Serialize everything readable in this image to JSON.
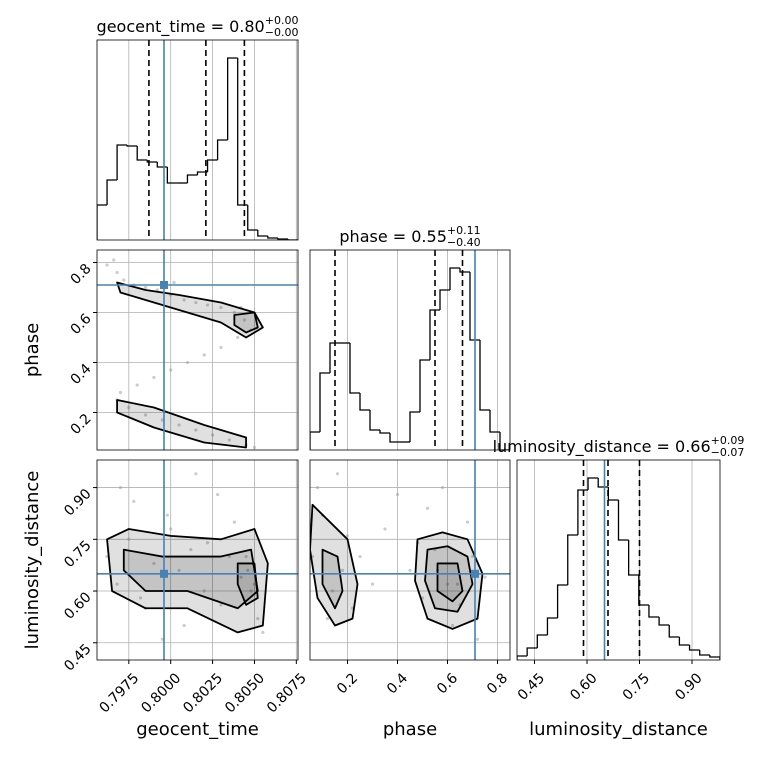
{
  "chart_data": [
    {
      "type": "histogram",
      "title": "geocent_time = 0.80",
      "title_upper": "+0.00",
      "title_lower": "−0.00",
      "xlim": [
        0.7956,
        0.8076
      ],
      "ylim": [
        0,
        200
      ],
      "color": "#000000",
      "grid": true,
      "bins": [
        0.7956,
        0.7962,
        0.7968,
        0.7974,
        0.798,
        0.7986,
        0.7992,
        0.7998,
        0.8004,
        0.801,
        0.8016,
        0.8022,
        0.8028,
        0.8034,
        0.804,
        0.8046,
        0.8052,
        0.8058,
        0.8064,
        0.807,
        0.8076
      ],
      "values": [
        35,
        60,
        95,
        94,
        80,
        78,
        73,
        57,
        57,
        65,
        68,
        80,
        100,
        182,
        35,
        10,
        4,
        2,
        1,
        0
      ],
      "quantiles": [
        0.7987,
        0.8021,
        0.8044
      ],
      "truth": 0.7996,
      "truth_color": "#4682b4"
    },
    {
      "type": "scatter",
      "xlim": [
        0.7956,
        0.8076
      ],
      "ylim": [
        0.05,
        0.85
      ],
      "grid": true,
      "ylabel": "phase",
      "yticks": [
        0.2,
        0.4,
        0.6,
        0.8
      ],
      "color": "#999999",
      "truth_x": 0.7996,
      "truth_y": 0.71,
      "truth_color": "#4682b4",
      "x": [
        0.7962,
        0.7968,
        0.7972,
        0.7978,
        0.7985,
        0.7992,
        0.8,
        0.8008,
        0.8015,
        0.8022,
        0.803,
        0.8038,
        0.8044,
        0.8048,
        0.804,
        0.803,
        0.802,
        0.801,
        0.8,
        0.799,
        0.798,
        0.797,
        0.7968,
        0.7975,
        0.7985,
        0.7995,
        0.8005,
        0.8015,
        0.8025,
        0.8035,
        0.8045,
        0.805,
        0.7966,
        0.8002,
        0.8042
      ],
      "y": [
        0.79,
        0.76,
        0.73,
        0.71,
        0.7,
        0.69,
        0.67,
        0.65,
        0.64,
        0.63,
        0.62,
        0.6,
        0.57,
        0.53,
        0.5,
        0.46,
        0.43,
        0.4,
        0.37,
        0.34,
        0.31,
        0.28,
        0.25,
        0.22,
        0.19,
        0.17,
        0.15,
        0.13,
        0.11,
        0.09,
        0.07,
        0.06,
        0.81,
        0.72,
        0.62
      ],
      "contours": [
        {
          "x": [
            0.7968,
            0.7985,
            0.8005,
            0.803,
            0.805,
            0.8055,
            0.8045,
            0.803,
            0.801,
            0.799,
            0.797
          ],
          "y": [
            0.72,
            0.69,
            0.67,
            0.64,
            0.6,
            0.54,
            0.5,
            0.56,
            0.6,
            0.64,
            0.68
          ]
        },
        {
          "x": [
            0.8038,
            0.805,
            0.8052,
            0.8045,
            0.8038
          ],
          "y": [
            0.59,
            0.6,
            0.54,
            0.52,
            0.55
          ]
        },
        {
          "x": [
            0.7968,
            0.799,
            0.802,
            0.8045,
            0.8045,
            0.802,
            0.799,
            0.7968
          ],
          "y": [
            0.25,
            0.22,
            0.15,
            0.1,
            0.06,
            0.08,
            0.14,
            0.2
          ]
        }
      ]
    },
    {
      "type": "histogram",
      "title": "phase = 0.55",
      "title_upper": "+0.11",
      "title_lower": "−0.40",
      "xlim": [
        0.05,
        0.85
      ],
      "ylim": [
        0,
        200
      ],
      "color": "#000000",
      "grid": true,
      "bins": [
        0.05,
        0.09,
        0.13,
        0.17,
        0.21,
        0.25,
        0.29,
        0.33,
        0.37,
        0.41,
        0.45,
        0.49,
        0.53,
        0.57,
        0.61,
        0.65,
        0.69,
        0.73,
        0.77,
        0.81,
        0.85
      ],
      "values": [
        18,
        77,
        107,
        107,
        57,
        40,
        20,
        17,
        8,
        8,
        38,
        90,
        140,
        160,
        182,
        178,
        110,
        40,
        18,
        0
      ],
      "quantiles": [
        0.15,
        0.55,
        0.66
      ],
      "truth": 0.71,
      "truth_color": "#4682b4"
    },
    {
      "type": "scatter",
      "xlim": [
        0.7956,
        0.8076
      ],
      "ylim": [
        0.4,
        0.98
      ],
      "grid": true,
      "xlabel": "geocent_time",
      "ylabel": "luminosity_distance",
      "xticks": [
        0.7975,
        {
          "value": 0.8,
          "label": "0.8000"
        },
        0.8025,
        {
          "value": 0.805,
          "label": "0.8050"
        },
        0.8075
      ],
      "yticks": [
        0.45,
        {
          "value": 0.6,
          "label": "0.60"
        },
        0.75,
        {
          "value": 0.9,
          "label": "0.90"
        }
      ],
      "color": "#999999",
      "truth_x": 0.7996,
      "truth_y": 0.65,
      "truth_color": "#4682b4",
      "x": [
        0.7962,
        0.7968,
        0.7975,
        0.7982,
        0.799,
        0.7998,
        0.8005,
        0.8012,
        0.802,
        0.8028,
        0.8035,
        0.8042,
        0.8048,
        0.8052,
        0.8055,
        0.797,
        0.7985,
        0.8,
        0.8015,
        0.803,
        0.8045,
        0.805,
        0.7978,
        0.8008,
        0.8038,
        0.8046,
        0.7995,
        0.8022
      ],
      "y": [
        0.7,
        0.62,
        0.75,
        0.58,
        0.68,
        0.82,
        0.66,
        0.72,
        0.6,
        0.88,
        0.7,
        0.64,
        0.6,
        0.52,
        0.48,
        0.9,
        0.55,
        0.78,
        0.94,
        0.56,
        0.7,
        0.62,
        0.86,
        0.5,
        0.8,
        0.66,
        0.46,
        0.74
      ],
      "contours": [
        {
          "x": [
            0.7962,
            0.7975,
            0.8,
            0.803,
            0.805,
            0.8058,
            0.8055,
            0.804,
            0.801,
            0.7985,
            0.7965
          ],
          "y": [
            0.75,
            0.78,
            0.76,
            0.75,
            0.78,
            0.68,
            0.5,
            0.48,
            0.55,
            0.55,
            0.6
          ]
        },
        {
          "x": [
            0.7972,
            0.7995,
            0.803,
            0.8048,
            0.8052,
            0.804,
            0.801,
            0.7985,
            0.7972
          ],
          "y": [
            0.72,
            0.7,
            0.7,
            0.72,
            0.6,
            0.55,
            0.6,
            0.6,
            0.66
          ]
        },
        {
          "x": [
            0.804,
            0.805,
            0.8052,
            0.8045,
            0.804
          ],
          "y": [
            0.68,
            0.68,
            0.58,
            0.56,
            0.62
          ]
        }
      ]
    },
    {
      "type": "scatter",
      "xlim": [
        0.05,
        0.85
      ],
      "ylim": [
        0.4,
        0.98
      ],
      "grid": true,
      "xlabel": "phase",
      "xticks": [
        0.2,
        0.4,
        0.6,
        0.8
      ],
      "color": "#999999",
      "truth_x": 0.71,
      "truth_y": 0.65,
      "truth_color": "#4682b4",
      "x": [
        0.06,
        0.1,
        0.14,
        0.18,
        0.22,
        0.08,
        0.12,
        0.2,
        0.16,
        0.25,
        0.3,
        0.45,
        0.5,
        0.55,
        0.6,
        0.65,
        0.7,
        0.75,
        0.52,
        0.58,
        0.62,
        0.68,
        0.72,
        0.48,
        0.56,
        0.64,
        0.35,
        0.4
      ],
      "y": [
        0.7,
        0.82,
        0.6,
        0.66,
        0.55,
        0.9,
        0.52,
        0.76,
        0.94,
        0.7,
        0.62,
        0.66,
        0.58,
        0.72,
        0.62,
        0.56,
        0.7,
        0.64,
        0.84,
        0.9,
        0.5,
        0.8,
        0.46,
        0.74,
        0.66,
        0.62,
        0.78,
        0.88
      ],
      "contours": [
        {
          "x": [
            0.06,
            0.13,
            0.2,
            0.24,
            0.22,
            0.15,
            0.08,
            0.05
          ],
          "y": [
            0.85,
            0.8,
            0.75,
            0.62,
            0.52,
            0.5,
            0.58,
            0.72
          ]
        },
        {
          "x": [
            0.1,
            0.16,
            0.18,
            0.15,
            0.1
          ],
          "y": [
            0.72,
            0.7,
            0.6,
            0.55,
            0.62
          ]
        },
        {
          "x": [
            0.48,
            0.58,
            0.68,
            0.74,
            0.72,
            0.62,
            0.52,
            0.47
          ],
          "y": [
            0.75,
            0.77,
            0.75,
            0.65,
            0.52,
            0.49,
            0.52,
            0.63
          ]
        },
        {
          "x": [
            0.52,
            0.6,
            0.68,
            0.7,
            0.64,
            0.55,
            0.51
          ],
          "y": [
            0.72,
            0.73,
            0.7,
            0.62,
            0.54,
            0.55,
            0.63
          ]
        },
        {
          "x": [
            0.56,
            0.64,
            0.66,
            0.62,
            0.56
          ],
          "y": [
            0.68,
            0.68,
            0.6,
            0.57,
            0.6
          ]
        }
      ]
    },
    {
      "type": "histogram",
      "title": "luminosity_distance = 0.66",
      "title_upper": "+0.09",
      "title_lower": "−0.07",
      "xlim": [
        0.4,
        0.98
      ],
      "ylim": [
        0,
        200
      ],
      "color": "#000000",
      "grid": true,
      "xlabel": "luminosity_distance",
      "xticks": [
        0.45,
        {
          "value": 0.6,
          "label": "0.60"
        },
        0.75,
        {
          "value": 0.9,
          "label": "0.90"
        }
      ],
      "bins": [
        0.4,
        0.429,
        0.458,
        0.487,
        0.516,
        0.545,
        0.574,
        0.603,
        0.632,
        0.661,
        0.69,
        0.719,
        0.748,
        0.777,
        0.806,
        0.835,
        0.864,
        0.893,
        0.922,
        0.951,
        0.98
      ],
      "values": [
        4,
        12,
        25,
        42,
        75,
        125,
        170,
        182,
        173,
        160,
        120,
        85,
        55,
        43,
        35,
        23,
        15,
        10,
        5,
        3
      ],
      "quantiles": [
        0.59,
        0.66,
        0.75
      ],
      "truth": 0.65,
      "truth_color": "#4682b4"
    }
  ]
}
